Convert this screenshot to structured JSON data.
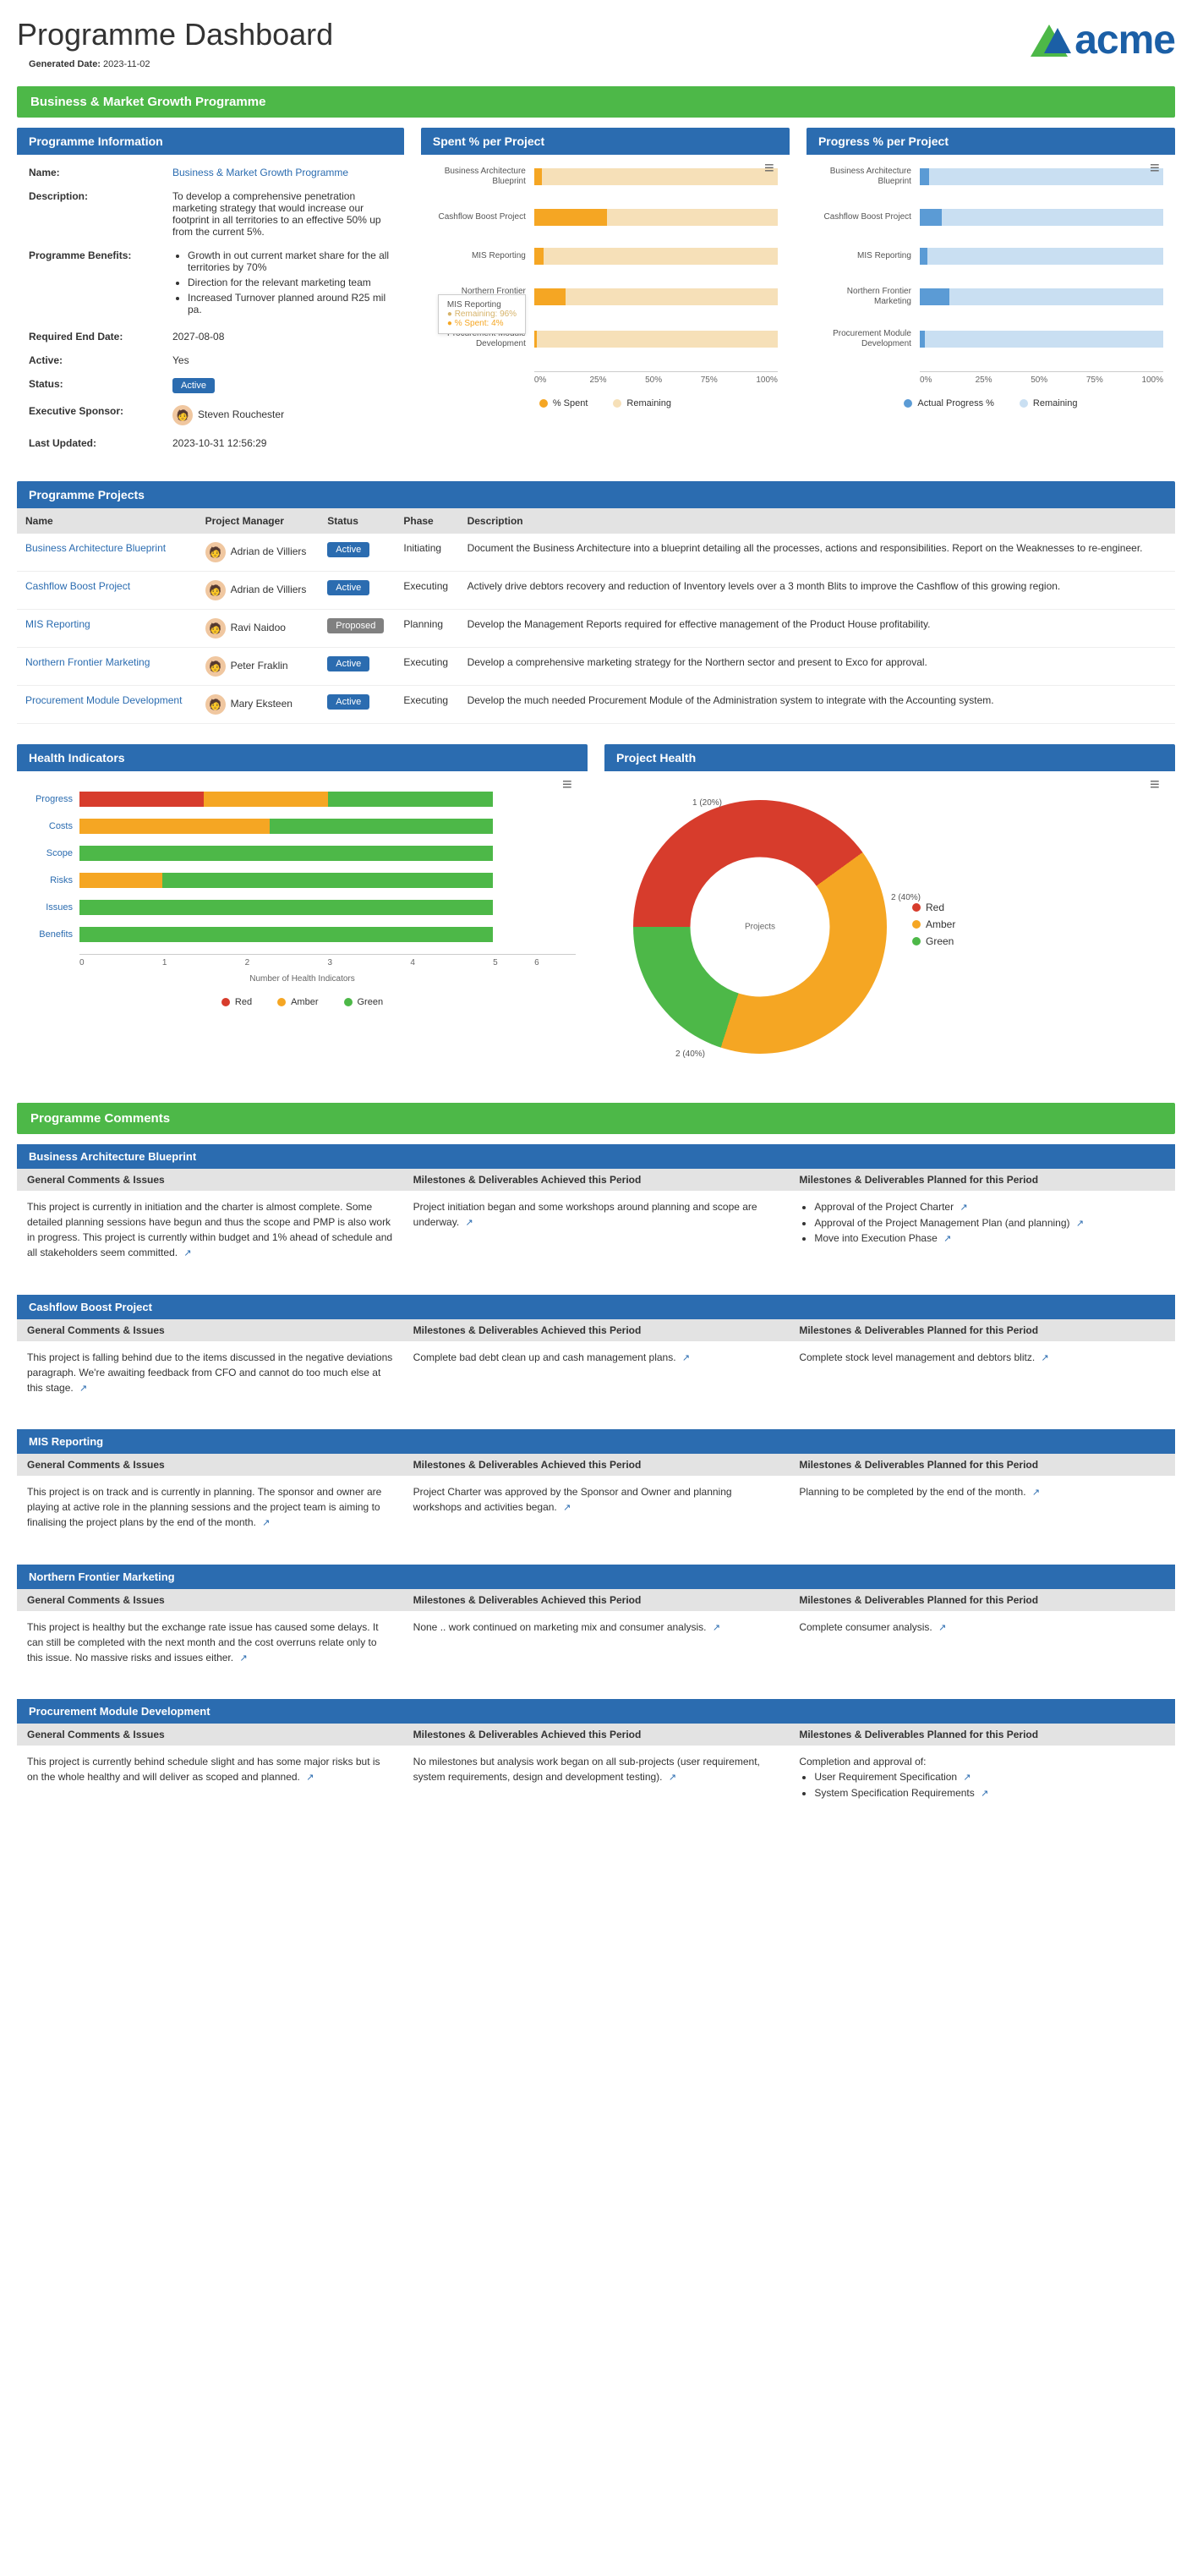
{
  "page_title": "Programme Dashboard",
  "generated_label": "Generated Date:",
  "generated_date": "2023-11-02",
  "logo_text": "acme",
  "programme_bar": "Business & Market Growth Programme",
  "colors": {
    "green": "#4db848",
    "blue": "#2b6cb0",
    "red": "#d73c2c",
    "amber": "#f5a623",
    "spent_bar": "#f5a623",
    "spent_rem": "#f6e0b8",
    "progress_bar": "#5b9bd5",
    "progress_rem": "#c9dff2",
    "table_header": "#e3e3e3"
  },
  "info_panel": {
    "title": "Programme Information",
    "rows": {
      "name_lbl": "Name:",
      "name_val": "Business & Market Growth Programme",
      "desc_lbl": "Description:",
      "desc_val": "To develop a comprehensive penetration marketing strategy that would increase our footprint in all territories to an effective 50% up from the current 5%.",
      "ben_lbl": "Programme Benefits:",
      "ben_items": [
        "Growth in out current market share for the all territories by 70%",
        "Direction for the relevant marketing team",
        "Increased Turnover planned around R25 mil pa."
      ],
      "end_lbl": "Required End Date:",
      "end_val": "2027-08-08",
      "active_lbl": "Active:",
      "active_val": "Yes",
      "status_lbl": "Status:",
      "status_val": "Active",
      "sponsor_lbl": "Executive Sponsor:",
      "sponsor_val": "Steven Rouchester",
      "updated_lbl": "Last Updated:",
      "updated_val": "2023-10-31 12:56:29"
    }
  },
  "spent_chart": {
    "title": "Spent % per Project",
    "projects": [
      {
        "label": "Business Architecture Blueprint",
        "spent": 3
      },
      {
        "label": "Cashflow Boost Project",
        "spent": 30
      },
      {
        "label": "MIS Reporting",
        "spent": 4
      },
      {
        "label": "Northern Frontier Marketing",
        "spent": 13
      },
      {
        "label": "Procurement Module Development",
        "spent": 1
      }
    ],
    "axis": [
      "0%",
      "25%",
      "50%",
      "75%",
      "100%"
    ],
    "legend": [
      "% Spent",
      "Remaining"
    ],
    "tooltip": {
      "title": "MIS Reporting",
      "l1": "Remaining: 96%",
      "l2": "% Spent: 4%"
    }
  },
  "progress_chart": {
    "title": "Progress % per Project",
    "projects": [
      {
        "label": "Business Architecture Blueprint",
        "val": 4
      },
      {
        "label": "Cashflow Boost Project",
        "val": 9
      },
      {
        "label": "MIS Reporting",
        "val": 3
      },
      {
        "label": "Northern Frontier Marketing",
        "val": 12
      },
      {
        "label": "Procurement Module Development",
        "val": 2
      }
    ],
    "axis": [
      "0%",
      "25%",
      "50%",
      "75%",
      "100%"
    ],
    "legend": [
      "Actual Progress %",
      "Remaining"
    ]
  },
  "projects_panel": {
    "title": "Programme Projects",
    "columns": [
      "Name",
      "Project Manager",
      "Status",
      "Phase",
      "Description"
    ],
    "rows": [
      {
        "name": "Business Architecture Blueprint",
        "pm": "Adrian de Villiers",
        "status": "Active",
        "status_class": "blue",
        "phase": "Initiating",
        "desc": "Document the Business Architecture into a blueprint detailing all the processes, actions and responsibilities. Report on the Weaknesses to re-engineer."
      },
      {
        "name": "Cashflow Boost Project",
        "pm": "Adrian de Villiers",
        "status": "Active",
        "status_class": "blue",
        "phase": "Executing",
        "desc": "Actively drive debtors recovery and reduction of Inventory levels over a 3 month Blits to improve the Cashflow of this growing region."
      },
      {
        "name": "MIS Reporting",
        "pm": "Ravi Naidoo",
        "status": "Proposed",
        "status_class": "grey",
        "phase": "Planning",
        "desc": "Develop the Management Reports required for effective management of the Product House profitability."
      },
      {
        "name": "Northern Frontier Marketing",
        "pm": "Peter Fraklin",
        "status": "Active",
        "status_class": "blue",
        "phase": "Executing",
        "desc": "Develop a comprehensive marketing strategy for the Northern sector and present to Exco for approval."
      },
      {
        "name": "Procurement Module Development",
        "pm": "Mary Eksteen",
        "status": "Active",
        "status_class": "blue",
        "phase": "Executing",
        "desc": "Develop the much needed Procurement Module of the Administration system to integrate with the Accounting system."
      }
    ]
  },
  "health_panel": {
    "title": "Health Indicators",
    "xlabel": "Number of Health Indicators",
    "xmax": 6,
    "rows": [
      {
        "label": "Progress",
        "red": 1.5,
        "amber": 1.5,
        "green": 2
      },
      {
        "label": "Costs",
        "red": 0,
        "amber": 2.3,
        "green": 2.7
      },
      {
        "label": "Scope",
        "red": 0,
        "amber": 0,
        "green": 5
      },
      {
        "label": "Risks",
        "red": 0,
        "amber": 1,
        "green": 4
      },
      {
        "label": "Issues",
        "red": 0,
        "amber": 0,
        "green": 5
      },
      {
        "label": "Benefits",
        "red": 0,
        "amber": 0,
        "green": 5
      }
    ],
    "legend": [
      "Red",
      "Amber",
      "Green"
    ],
    "axis": [
      "0",
      "1",
      "2",
      "3",
      "4",
      "5",
      "6"
    ]
  },
  "project_health": {
    "title": "Project Health",
    "center_label": "Projects",
    "slices": [
      {
        "label": "Red",
        "count": "2 (40%)",
        "pct": 40,
        "color": "#d73c2c"
      },
      {
        "label": "Amber",
        "count": "2 (40%)",
        "pct": 40,
        "color": "#f5a623"
      },
      {
        "label": "Green",
        "count": "1 (20%)",
        "pct": 20,
        "color": "#4db848"
      }
    ]
  },
  "comments_bar": "Programme Comments",
  "comments_shared_headers": {
    "c1": "General Comments & Issues",
    "c2": "Milestones & Deliverables Achieved this Period",
    "c3": "Milestones & Deliverables Planned for this Period"
  },
  "comments": [
    {
      "title": "Business Architecture Blueprint",
      "c1": "This project is currently in initiation and the charter is almost complete. Some detailed planning sessions have begun and thus the scope and PMP is also work in progress. This project is currently within budget and 1% ahead of schedule and all stakeholders seem committed.",
      "c2": "Project initiation began and some workshops around planning and scope are underway.",
      "c3_list": [
        "Approval of the Project Charter",
        "Approval of the Project Management Plan (and planning)",
        "Move into Execution Phase"
      ]
    },
    {
      "title": "Cashflow Boost Project",
      "c1": "This project is falling behind due to the items discussed in the negative deviations paragraph. We're awaiting feedback from CFO and cannot do too much else at this stage.",
      "c2": "Complete bad debt clean up and cash management plans.",
      "c3": "Complete stock level management and debtors blitz."
    },
    {
      "title": "MIS Reporting",
      "c1": "This project is on track and is currently in planning. The sponsor and owner are playing at active role in the planning sessions and the project team is aiming to finalising the project plans by the end of the month.",
      "c2": "Project Charter was approved by the Sponsor and Owner and planning workshops and activities began.",
      "c3": "Planning to be completed by the end of the month."
    },
    {
      "title": "Northern Frontier Marketing",
      "c1": "This project is healthy but the exchange rate issue has caused some delays. It can still be completed with the next month and the cost overruns relate only to this issue. No massive risks and issues either.",
      "c2": "None .. work continued on marketing mix and consumer analysis.",
      "c3": "Complete consumer analysis."
    },
    {
      "title": "Procurement Module Development",
      "c1": "This project is currently behind schedule slight and has some major risks but is on the whole healthy and will deliver as scoped and planned.",
      "c2": "No milestones but analysis work began on all sub-projects (user requirement, system requirements, design and development testing).",
      "c3_intro": "Completion and approval of:",
      "c3_list": [
        "User Requirement Specification",
        "System Specification Requirements"
      ]
    }
  ]
}
